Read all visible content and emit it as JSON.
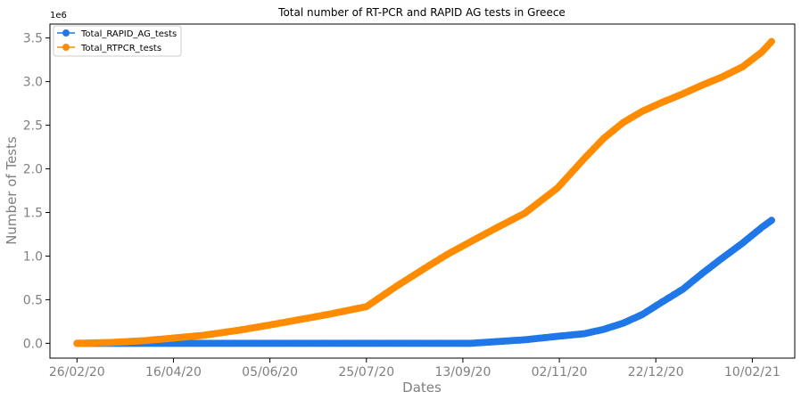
{
  "chart_data": {
    "type": "line",
    "title": "Total number of RT-PCR and RAPID AG tests in Greece",
    "xlabel": "Dates",
    "ylabel": "Number of Tests",
    "y_offset_label": "1e6",
    "x_ticks": [
      "26/02/20",
      "16/04/20",
      "05/06/20",
      "25/07/20",
      "13/09/20",
      "02/11/20",
      "22/12/20",
      "10/02/21"
    ],
    "y_ticks": [
      "0.0",
      "0.5",
      "1.0",
      "1.5",
      "2.0",
      "2.5",
      "3.0",
      "3.5"
    ],
    "xlim": [
      "2020-02-12",
      "2021-03-04"
    ],
    "ylim": [
      -0.17,
      3.66
    ],
    "grid": false,
    "legend_position": "top-left",
    "series": [
      {
        "name": "Total_RAPID_AG_tests",
        "color": "#1f77e8",
        "x": [
          "2020-02-26",
          "2020-09-17",
          "2020-10-01",
          "2020-10-15",
          "2020-11-01",
          "2020-11-15",
          "2020-11-25",
          "2020-12-05",
          "2020-12-15",
          "2020-12-25",
          "2021-01-05",
          "2021-01-15",
          "2021-01-25",
          "2021-02-05",
          "2021-02-15",
          "2021-02-20"
        ],
        "y": [
          0.0,
          0.0,
          0.02,
          0.04,
          0.08,
          0.11,
          0.16,
          0.23,
          0.33,
          0.47,
          0.62,
          0.8,
          0.97,
          1.15,
          1.33,
          1.41
        ]
      },
      {
        "name": "Total_RTPCR_tests",
        "color": "#ff8c00",
        "x": [
          "2020-02-26",
          "2020-03-15",
          "2020-04-01",
          "2020-04-16",
          "2020-05-01",
          "2020-05-20",
          "2020-06-05",
          "2020-06-20",
          "2020-07-05",
          "2020-07-25",
          "2020-08-10",
          "2020-08-25",
          "2020-09-05",
          "2020-09-20",
          "2020-10-01",
          "2020-10-15",
          "2020-11-01",
          "2020-11-15",
          "2020-11-25",
          "2020-12-05",
          "2020-12-15",
          "2020-12-25",
          "2021-01-05",
          "2021-01-15",
          "2021-01-25",
          "2021-02-05",
          "2021-02-15",
          "2021-02-20"
        ],
        "y": [
          0.0,
          0.01,
          0.03,
          0.06,
          0.09,
          0.15,
          0.21,
          0.27,
          0.33,
          0.42,
          0.66,
          0.87,
          1.02,
          1.2,
          1.33,
          1.49,
          1.78,
          2.12,
          2.35,
          2.53,
          2.66,
          2.76,
          2.86,
          2.96,
          3.05,
          3.17,
          3.34,
          3.46
        ]
      }
    ]
  }
}
